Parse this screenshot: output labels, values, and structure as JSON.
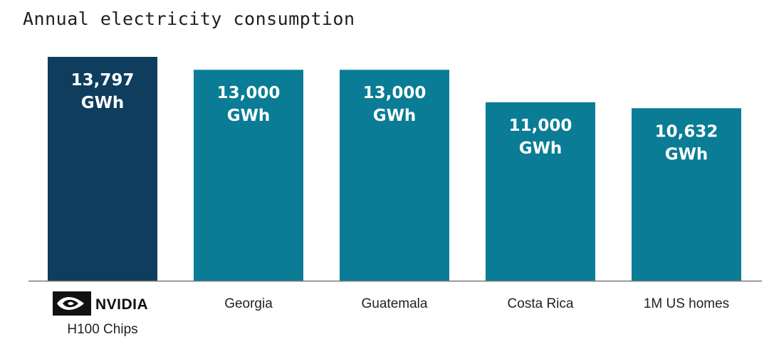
{
  "chart_data": {
    "type": "bar",
    "title": "Annual electricity consumption",
    "categories": [
      "NVIDIA H100 Chips",
      "Georgia",
      "Guatemala",
      "Costa Rica",
      "1M US homes"
    ],
    "category_labels": [
      "H100 Chips",
      "Georgia",
      "Guatemala",
      "Costa Rica",
      "1M US homes"
    ],
    "values": [
      13797,
      13000,
      13000,
      11000,
      10632
    ],
    "value_labels": [
      [
        "13,797",
        "GWh"
      ],
      [
        "13,000",
        "GWh"
      ],
      [
        "13,000",
        "GWh"
      ],
      [
        "11,000",
        "GWh"
      ],
      [
        "10,632",
        "GWh"
      ]
    ],
    "unit": "GWh",
    "ylim": [
      0,
      13797
    ],
    "grid": false,
    "legend": "none",
    "colors": [
      "#0e3d5e",
      "#0a7c96",
      "#0a7c96",
      "#0a7c96",
      "#0a7c96"
    ],
    "axis_color": "#777777"
  },
  "logo": {
    "text": "NVIDIA",
    "icon": "nvidia-eye-icon"
  }
}
